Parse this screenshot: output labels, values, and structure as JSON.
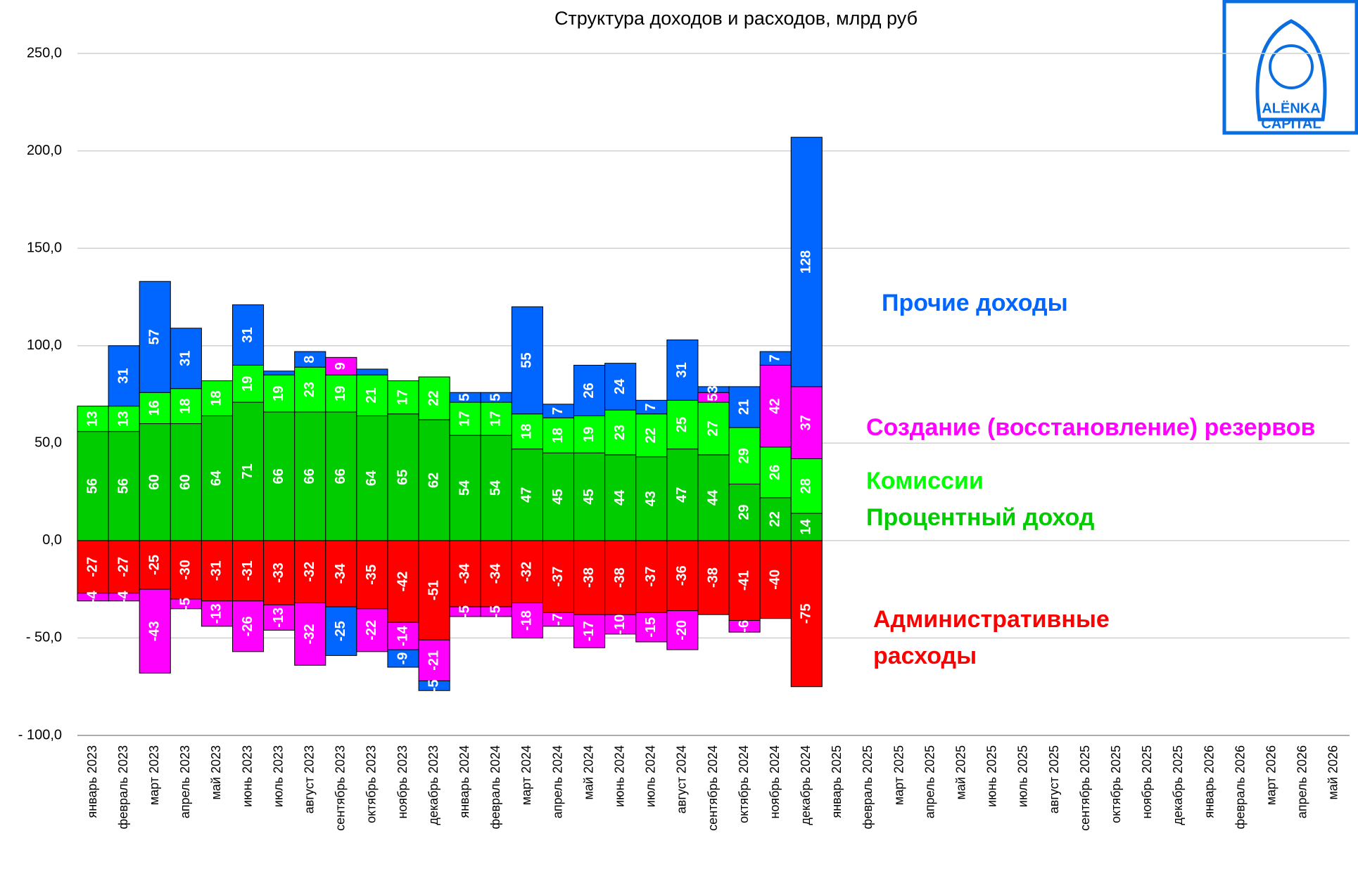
{
  "chart_data": {
    "type": "stacked_bar",
    "title": "Структура доходов и расходов, млрд руб",
    "logo": [
      "ALËNKA",
      "CAPITAL"
    ],
    "categories": [
      "январь 2023",
      "февраль 2023",
      "март 2023",
      "апрель 2023",
      "май 2023",
      "июнь 2023",
      "июль 2023",
      "август 2023",
      "сентябрь 2023",
      "октябрь 2023",
      "ноябрь 2023",
      "декабрь 2023",
      "январь 2024",
      "февраль 2024",
      "март 2024",
      "апрель 2024",
      "май 2024",
      "июнь 2024",
      "июль 2024",
      "август 2024",
      "сентябрь 2024",
      "октябрь 2024",
      "ноябрь 2024",
      "декабрь 2024",
      "январь 2025",
      "февраль 2025",
      "март 2025",
      "апрель 2025",
      "май 2025",
      "июнь 2025",
      "июль 2025",
      "август 2025",
      "сентябрь 2025",
      "октябрь 2025",
      "ноябрь 2025",
      "декабрь 2025",
      "январь 2026",
      "февраль 2026",
      "март 2026",
      "апрель 2026",
      "май 2026"
    ],
    "series": [
      {
        "name": "Административные расходы",
        "color": "#ff0000",
        "values": [
          -27,
          -27,
          -25,
          -30,
          -31,
          -31,
          -33,
          -32,
          -34,
          -35,
          -42,
          -51,
          -34,
          -34,
          -32,
          -37,
          -38,
          -38,
          -37,
          -36,
          -38,
          -41,
          -40,
          -75,
          null,
          null,
          null,
          null,
          null,
          null,
          null,
          null,
          null,
          null,
          null,
          null,
          null,
          null,
          null,
          null,
          null
        ]
      },
      {
        "name": "Процентный доход",
        "color": "#00cc00",
        "values": [
          56,
          56,
          60,
          60,
          64,
          71,
          66,
          66,
          66,
          64,
          65,
          62,
          54,
          54,
          47,
          45,
          45,
          44,
          43,
          47,
          44,
          29,
          22,
          14,
          null,
          null,
          null,
          null,
          null,
          null,
          null,
          null,
          null,
          null,
          null,
          null,
          null,
          null,
          null,
          null,
          null
        ]
      },
      {
        "name": "Комиссии",
        "color": "#00ff00",
        "values": [
          13,
          13,
          16,
          18,
          18,
          19,
          19,
          23,
          19,
          21,
          17,
          22,
          17,
          17,
          18,
          18,
          19,
          23,
          22,
          25,
          27,
          29,
          26,
          28,
          null,
          null,
          null,
          null,
          null,
          null,
          null,
          null,
          null,
          null,
          null,
          null,
          null,
          null,
          null,
          null,
          null
        ]
      },
      {
        "name": "Создание (восстановление) резервов",
        "color": "#ff00ff",
        "values": [
          -4,
          -4,
          -43,
          -5,
          -13,
          -26,
          -13,
          -32,
          9,
          -22,
          -14,
          -21,
          -5,
          -5,
          -18,
          -7,
          -17,
          -10,
          -15,
          -20,
          5,
          -6,
          42,
          37,
          null,
          null,
          null,
          null,
          null,
          null,
          null,
          null,
          null,
          null,
          null,
          null,
          null,
          null,
          null,
          null,
          null
        ]
      },
      {
        "name": "Прочие доходы",
        "color": "#0066ff",
        "values": [
          null,
          31,
          57,
          31,
          null,
          31,
          2,
          8,
          -25,
          3,
          -9,
          -5,
          5,
          5,
          55,
          7,
          26,
          24,
          7,
          31,
          3,
          21,
          7,
          128,
          null,
          null,
          null,
          null,
          null,
          null,
          null,
          null,
          null,
          null,
          null,
          null,
          null,
          null,
          null,
          null,
          null
        ],
        "value_labels": [
          null,
          "31",
          "57",
          "31",
          null,
          "31",
          null,
          "8",
          "-25",
          null,
          "-9",
          "-5",
          "5",
          "5",
          "55",
          "7",
          "26",
          "24",
          "7",
          "31",
          "3",
          "21",
          "7",
          "128",
          null,
          null,
          null,
          null,
          null,
          null,
          null,
          null,
          null,
          null,
          null,
          null,
          null,
          null,
          null,
          null,
          null
        ]
      }
    ],
    "ylim": [
      -100,
      250
    ],
    "yticks": [
      {
        "value": -100,
        "label": "- 100,0"
      },
      {
        "value": -50,
        "label": "- 50,0"
      },
      {
        "value": 0,
        "label": "0,0"
      },
      {
        "value": 50,
        "label": "50,0"
      },
      {
        "value": 100,
        "label": "100,0"
      },
      {
        "value": 150,
        "label": "150,0"
      },
      {
        "value": 200,
        "label": "200,0"
      },
      {
        "value": 250,
        "label": "250,0"
      }
    ],
    "grid": true
  }
}
